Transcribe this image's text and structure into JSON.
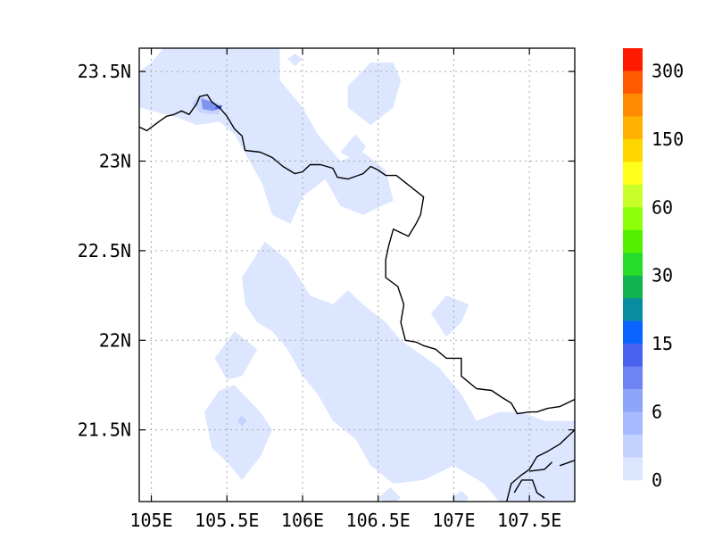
{
  "map": {
    "lon_range": [
      104.92,
      107.8
    ],
    "lat_range": [
      21.1,
      23.63
    ],
    "x_ticks": [
      {
        "value": 105.0,
        "label": "105E"
      },
      {
        "value": 105.5,
        "label": "105.5E"
      },
      {
        "value": 106.0,
        "label": "106E"
      },
      {
        "value": 106.5,
        "label": "106.5E"
      },
      {
        "value": 107.0,
        "label": "107E"
      },
      {
        "value": 107.5,
        "label": "107.5E"
      }
    ],
    "y_ticks": [
      {
        "value": 23.5,
        "label": "23.5N"
      },
      {
        "value": 23.0,
        "label": "23N"
      },
      {
        "value": 22.5,
        "label": "22.5N"
      },
      {
        "value": 22.0,
        "label": "22N"
      },
      {
        "value": 21.5,
        "label": "21.5N"
      }
    ],
    "grid": "dotted",
    "shaded_regions": [
      {
        "level": "0-3",
        "color": "#dce6ff",
        "polygon": [
          [
            105.08,
            23.63
          ],
          [
            105.85,
            23.63
          ],
          [
            105.85,
            23.45
          ],
          [
            106.0,
            23.3
          ],
          [
            106.1,
            23.15
          ],
          [
            106.25,
            23.0
          ],
          [
            106.4,
            23.05
          ],
          [
            106.55,
            22.95
          ],
          [
            106.6,
            22.78
          ],
          [
            106.4,
            22.7
          ],
          [
            106.25,
            22.75
          ],
          [
            106.15,
            22.9
          ],
          [
            106.0,
            22.8
          ],
          [
            105.92,
            22.65
          ],
          [
            105.8,
            22.7
          ],
          [
            105.73,
            22.88
          ],
          [
            105.65,
            23.0
          ],
          [
            105.55,
            23.15
          ],
          [
            105.45,
            23.22
          ],
          [
            105.3,
            23.2
          ],
          [
            105.15,
            23.25
          ],
          [
            105.0,
            23.28
          ],
          [
            104.92,
            23.3
          ],
          [
            104.92,
            23.5
          ],
          [
            105.0,
            23.55
          ]
        ]
      },
      {
        "level": "0-3",
        "color": "#dce6ff",
        "polygon": [
          [
            106.3,
            23.42
          ],
          [
            106.45,
            23.55
          ],
          [
            106.6,
            23.55
          ],
          [
            106.65,
            23.45
          ],
          [
            106.6,
            23.3
          ],
          [
            106.45,
            23.2
          ],
          [
            106.3,
            23.3
          ]
        ]
      },
      {
        "level": "0-3",
        "color": "#dce6ff",
        "polygon": [
          [
            105.9,
            23.57
          ],
          [
            105.95,
            23.6
          ],
          [
            106.0,
            23.57
          ],
          [
            105.95,
            23.53
          ]
        ]
      },
      {
        "level": "0-3",
        "color": "#dce6ff",
        "polygon": [
          [
            106.25,
            23.05
          ],
          [
            106.35,
            23.15
          ],
          [
            106.42,
            23.08
          ],
          [
            106.35,
            23.0
          ]
        ]
      },
      {
        "level": "0-3",
        "color": "#dce6ff",
        "polygon": [
          [
            105.6,
            22.35
          ],
          [
            105.75,
            22.55
          ],
          [
            105.9,
            22.45
          ],
          [
            106.05,
            22.25
          ],
          [
            106.2,
            22.2
          ],
          [
            106.3,
            22.28
          ],
          [
            106.4,
            22.2
          ],
          [
            106.55,
            22.1
          ],
          [
            106.65,
            22.0
          ],
          [
            106.9,
            21.85
          ],
          [
            107.05,
            21.7
          ],
          [
            107.15,
            21.55
          ],
          [
            107.3,
            21.6
          ],
          [
            107.45,
            21.6
          ],
          [
            107.6,
            21.55
          ],
          [
            107.8,
            21.55
          ],
          [
            107.8,
            21.1
          ],
          [
            107.3,
            21.1
          ],
          [
            107.2,
            21.2
          ],
          [
            107.0,
            21.3
          ],
          [
            106.8,
            21.22
          ],
          [
            106.6,
            21.2
          ],
          [
            106.45,
            21.3
          ],
          [
            106.35,
            21.45
          ],
          [
            106.2,
            21.55
          ],
          [
            106.1,
            21.7
          ],
          [
            106.0,
            21.8
          ],
          [
            105.9,
            21.95
          ],
          [
            105.8,
            22.05
          ],
          [
            105.7,
            22.1
          ],
          [
            105.62,
            22.2
          ]
        ]
      },
      {
        "level": "0-3",
        "color": "#dce6ff",
        "polygon": [
          [
            105.42,
            21.9
          ],
          [
            105.55,
            22.05
          ],
          [
            105.7,
            21.95
          ],
          [
            105.6,
            21.8
          ],
          [
            105.5,
            21.78
          ]
        ]
      },
      {
        "level": "0-3",
        "color": "#dce6ff",
        "polygon": [
          [
            105.35,
            21.6
          ],
          [
            105.45,
            21.72
          ],
          [
            105.55,
            21.75
          ],
          [
            105.72,
            21.6
          ],
          [
            105.8,
            21.5
          ],
          [
            105.72,
            21.35
          ],
          [
            105.6,
            21.22
          ],
          [
            105.5,
            21.32
          ],
          [
            105.4,
            21.4
          ]
        ]
      },
      {
        "level": "0-3",
        "color": "#dce6ff",
        "polygon": [
          [
            106.85,
            22.15
          ],
          [
            106.95,
            22.25
          ],
          [
            107.1,
            22.2
          ],
          [
            107.05,
            22.1
          ],
          [
            106.95,
            22.02
          ]
        ]
      },
      {
        "level": "0-3",
        "color": "#dce6ff",
        "polygon": [
          [
            106.5,
            21.12
          ],
          [
            106.58,
            21.18
          ],
          [
            106.65,
            21.12
          ],
          [
            106.58,
            21.08
          ]
        ]
      },
      {
        "level": "0-3",
        "color": "#dce6ff",
        "polygon": [
          [
            106.98,
            21.12
          ],
          [
            107.05,
            21.16
          ],
          [
            107.1,
            21.12
          ],
          [
            107.05,
            21.08
          ]
        ]
      },
      {
        "level": "3-6",
        "color": "#c4d2ff",
        "polygon": [
          [
            105.3,
            23.36
          ],
          [
            105.38,
            23.35
          ],
          [
            105.47,
            23.31
          ],
          [
            105.44,
            23.26
          ],
          [
            105.32,
            23.27
          ],
          [
            105.27,
            23.32
          ]
        ]
      },
      {
        "level": "6-9",
        "color": "#7e92f0",
        "polygon": [
          [
            105.33,
            23.35
          ],
          [
            105.4,
            23.33
          ],
          [
            105.46,
            23.3
          ],
          [
            105.41,
            23.28
          ],
          [
            105.34,
            23.29
          ]
        ]
      },
      {
        "level": "9-12",
        "color": "#4a60e6",
        "polygon": [
          [
            105.43,
            23.31
          ],
          [
            105.47,
            23.31
          ],
          [
            105.46,
            23.29
          ],
          [
            105.42,
            23.29
          ]
        ]
      },
      {
        "level": "0-3",
        "color": "#c4d2ff",
        "polygon": [
          [
            105.57,
            21.55
          ],
          [
            105.6,
            21.58
          ],
          [
            105.63,
            21.55
          ],
          [
            105.6,
            21.52
          ]
        ]
      }
    ],
    "borders": [
      [
        [
          104.92,
          23.19
        ],
        [
          104.97,
          23.17
        ],
        [
          105.05,
          23.22
        ],
        [
          105.1,
          23.25
        ],
        [
          105.15,
          23.26
        ],
        [
          105.2,
          23.28
        ],
        [
          105.25,
          23.26
        ],
        [
          105.3,
          23.32
        ],
        [
          105.32,
          23.36
        ],
        [
          105.37,
          23.37
        ],
        [
          105.4,
          23.33
        ],
        [
          105.45,
          23.3
        ],
        [
          105.5,
          23.25
        ],
        [
          105.55,
          23.18
        ],
        [
          105.6,
          23.14
        ],
        [
          105.62,
          23.06
        ],
        [
          105.72,
          23.05
        ],
        [
          105.8,
          23.02
        ],
        [
          105.87,
          22.97
        ],
        [
          105.95,
          22.93
        ],
        [
          106.0,
          22.94
        ],
        [
          106.05,
          22.98
        ],
        [
          106.12,
          22.98
        ],
        [
          106.2,
          22.96
        ],
        [
          106.23,
          22.91
        ],
        [
          106.3,
          22.9
        ],
        [
          106.4,
          22.93
        ],
        [
          106.45,
          22.97
        ],
        [
          106.5,
          22.95
        ],
        [
          106.55,
          22.92
        ],
        [
          106.62,
          22.92
        ],
        [
          106.68,
          22.88
        ],
        [
          106.8,
          22.8
        ],
        [
          106.78,
          22.7
        ],
        [
          106.75,
          22.65
        ],
        [
          106.7,
          22.58
        ],
        [
          106.65,
          22.6
        ],
        [
          106.6,
          22.62
        ],
        [
          106.57,
          22.53
        ],
        [
          106.55,
          22.45
        ],
        [
          106.55,
          22.35
        ],
        [
          106.63,
          22.3
        ],
        [
          106.67,
          22.2
        ],
        [
          106.65,
          22.1
        ],
        [
          106.68,
          22.0
        ],
        [
          106.75,
          21.99
        ],
        [
          106.8,
          21.97
        ],
        [
          106.88,
          21.95
        ],
        [
          106.95,
          21.9
        ],
        [
          107.05,
          21.9
        ],
        [
          107.05,
          21.8
        ],
        [
          107.15,
          21.73
        ],
        [
          107.25,
          21.72
        ],
        [
          107.32,
          21.68
        ],
        [
          107.38,
          21.65
        ],
        [
          107.42,
          21.59
        ],
        [
          107.5,
          21.6
        ],
        [
          107.55,
          21.6
        ],
        [
          107.62,
          21.62
        ],
        [
          107.7,
          21.63
        ],
        [
          107.8,
          21.67
        ]
      ],
      [
        [
          107.35,
          21.1
        ],
        [
          107.38,
          21.2
        ],
        [
          107.45,
          21.25
        ],
        [
          107.5,
          21.28
        ],
        [
          107.55,
          21.35
        ],
        [
          107.62,
          21.38
        ],
        [
          107.7,
          21.42
        ],
        [
          107.8,
          21.5
        ]
      ],
      [
        [
          107.4,
          21.15
        ],
        [
          107.45,
          21.22
        ],
        [
          107.52,
          21.22
        ],
        [
          107.55,
          21.15
        ],
        [
          107.6,
          21.12
        ]
      ],
      [
        [
          107.7,
          21.3
        ],
        [
          107.8,
          21.33
        ]
      ],
      [
        [
          107.5,
          21.27
        ],
        [
          107.6,
          21.28
        ],
        [
          107.65,
          21.32
        ]
      ]
    ]
  },
  "legend": {
    "colors": [
      "#ff1a00",
      "#ff5a00",
      "#ff8c00",
      "#ffb000",
      "#ffd700",
      "#ffff1a",
      "#c8ff28",
      "#8cff0a",
      "#52f000",
      "#26dc28",
      "#10b450",
      "#0a8ca0",
      "#0a64ff",
      "#4a62f0",
      "#6e84f5",
      "#8ea4f8",
      "#a8baff",
      "#c4d2ff",
      "#dce6ff"
    ],
    "labels": [
      {
        "text": "300",
        "at": 1
      },
      {
        "text": "150",
        "at": 4
      },
      {
        "text": "60",
        "at": 7
      },
      {
        "text": "30",
        "at": 10
      },
      {
        "text": "15",
        "at": 13
      },
      {
        "text": "6",
        "at": 16
      },
      {
        "text": "0",
        "at": 19
      }
    ]
  }
}
